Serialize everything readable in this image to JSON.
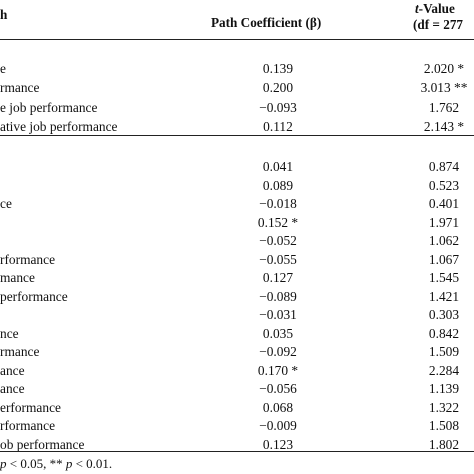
{
  "table": {
    "header": {
      "path_fragment": "h",
      "coef": "Path Coefficient (β)",
      "t_line1": "t-Value",
      "t_line2": "(df = 277"
    },
    "section1": [
      {
        "path": "e",
        "coef": "0.139",
        "t": "2.020 *"
      },
      {
        "path": "rmance",
        "coef": "0.200",
        "t": "3.013 **"
      },
      {
        "path": "e job performance",
        "coef": "−0.093",
        "t": "1.762"
      },
      {
        "path": "ative job performance",
        "coef": "0.112",
        "t": "2.143 *"
      }
    ],
    "section2": [
      {
        "path": "",
        "coef": "0.041",
        "t": "0.874"
      },
      {
        "path": "",
        "coef": "0.089",
        "t": "0.523"
      },
      {
        "path": "ce",
        "coef": "−0.018",
        "t": "0.401"
      },
      {
        "path": "",
        "coef": "0.152 *",
        "t": "1.971"
      },
      {
        "path": "",
        "coef": "−0.052",
        "t": "1.062"
      },
      {
        "path": "rformance",
        "coef": "−0.055",
        "t": "1.067"
      },
      {
        "path": "mance",
        "coef": "0.127",
        "t": "1.545"
      },
      {
        "path": "performance",
        "coef": "−0.089",
        "t": "1.421"
      },
      {
        "path": "",
        "coef": "−0.031",
        "t": "0.303"
      },
      {
        "path": "nce",
        "coef": "0.035",
        "t": "0.842"
      },
      {
        "path": "rmance",
        "coef": "−0.092",
        "t": "1.509"
      },
      {
        "path": "ance",
        "coef": "0.170 *",
        "t": "2.284"
      },
      {
        "path": "ance",
        "coef": "−0.056",
        "t": "1.139"
      },
      {
        "path": "erformance",
        "coef": "0.068",
        "t": "1.322"
      },
      {
        "path": "rformance",
        "coef": "−0.009",
        "t": "1.508"
      },
      {
        "path": "ob performance",
        "coef": "0.123",
        "t": "1.802"
      }
    ],
    "footnote": "p < 0.05, ** p < 0.01."
  }
}
